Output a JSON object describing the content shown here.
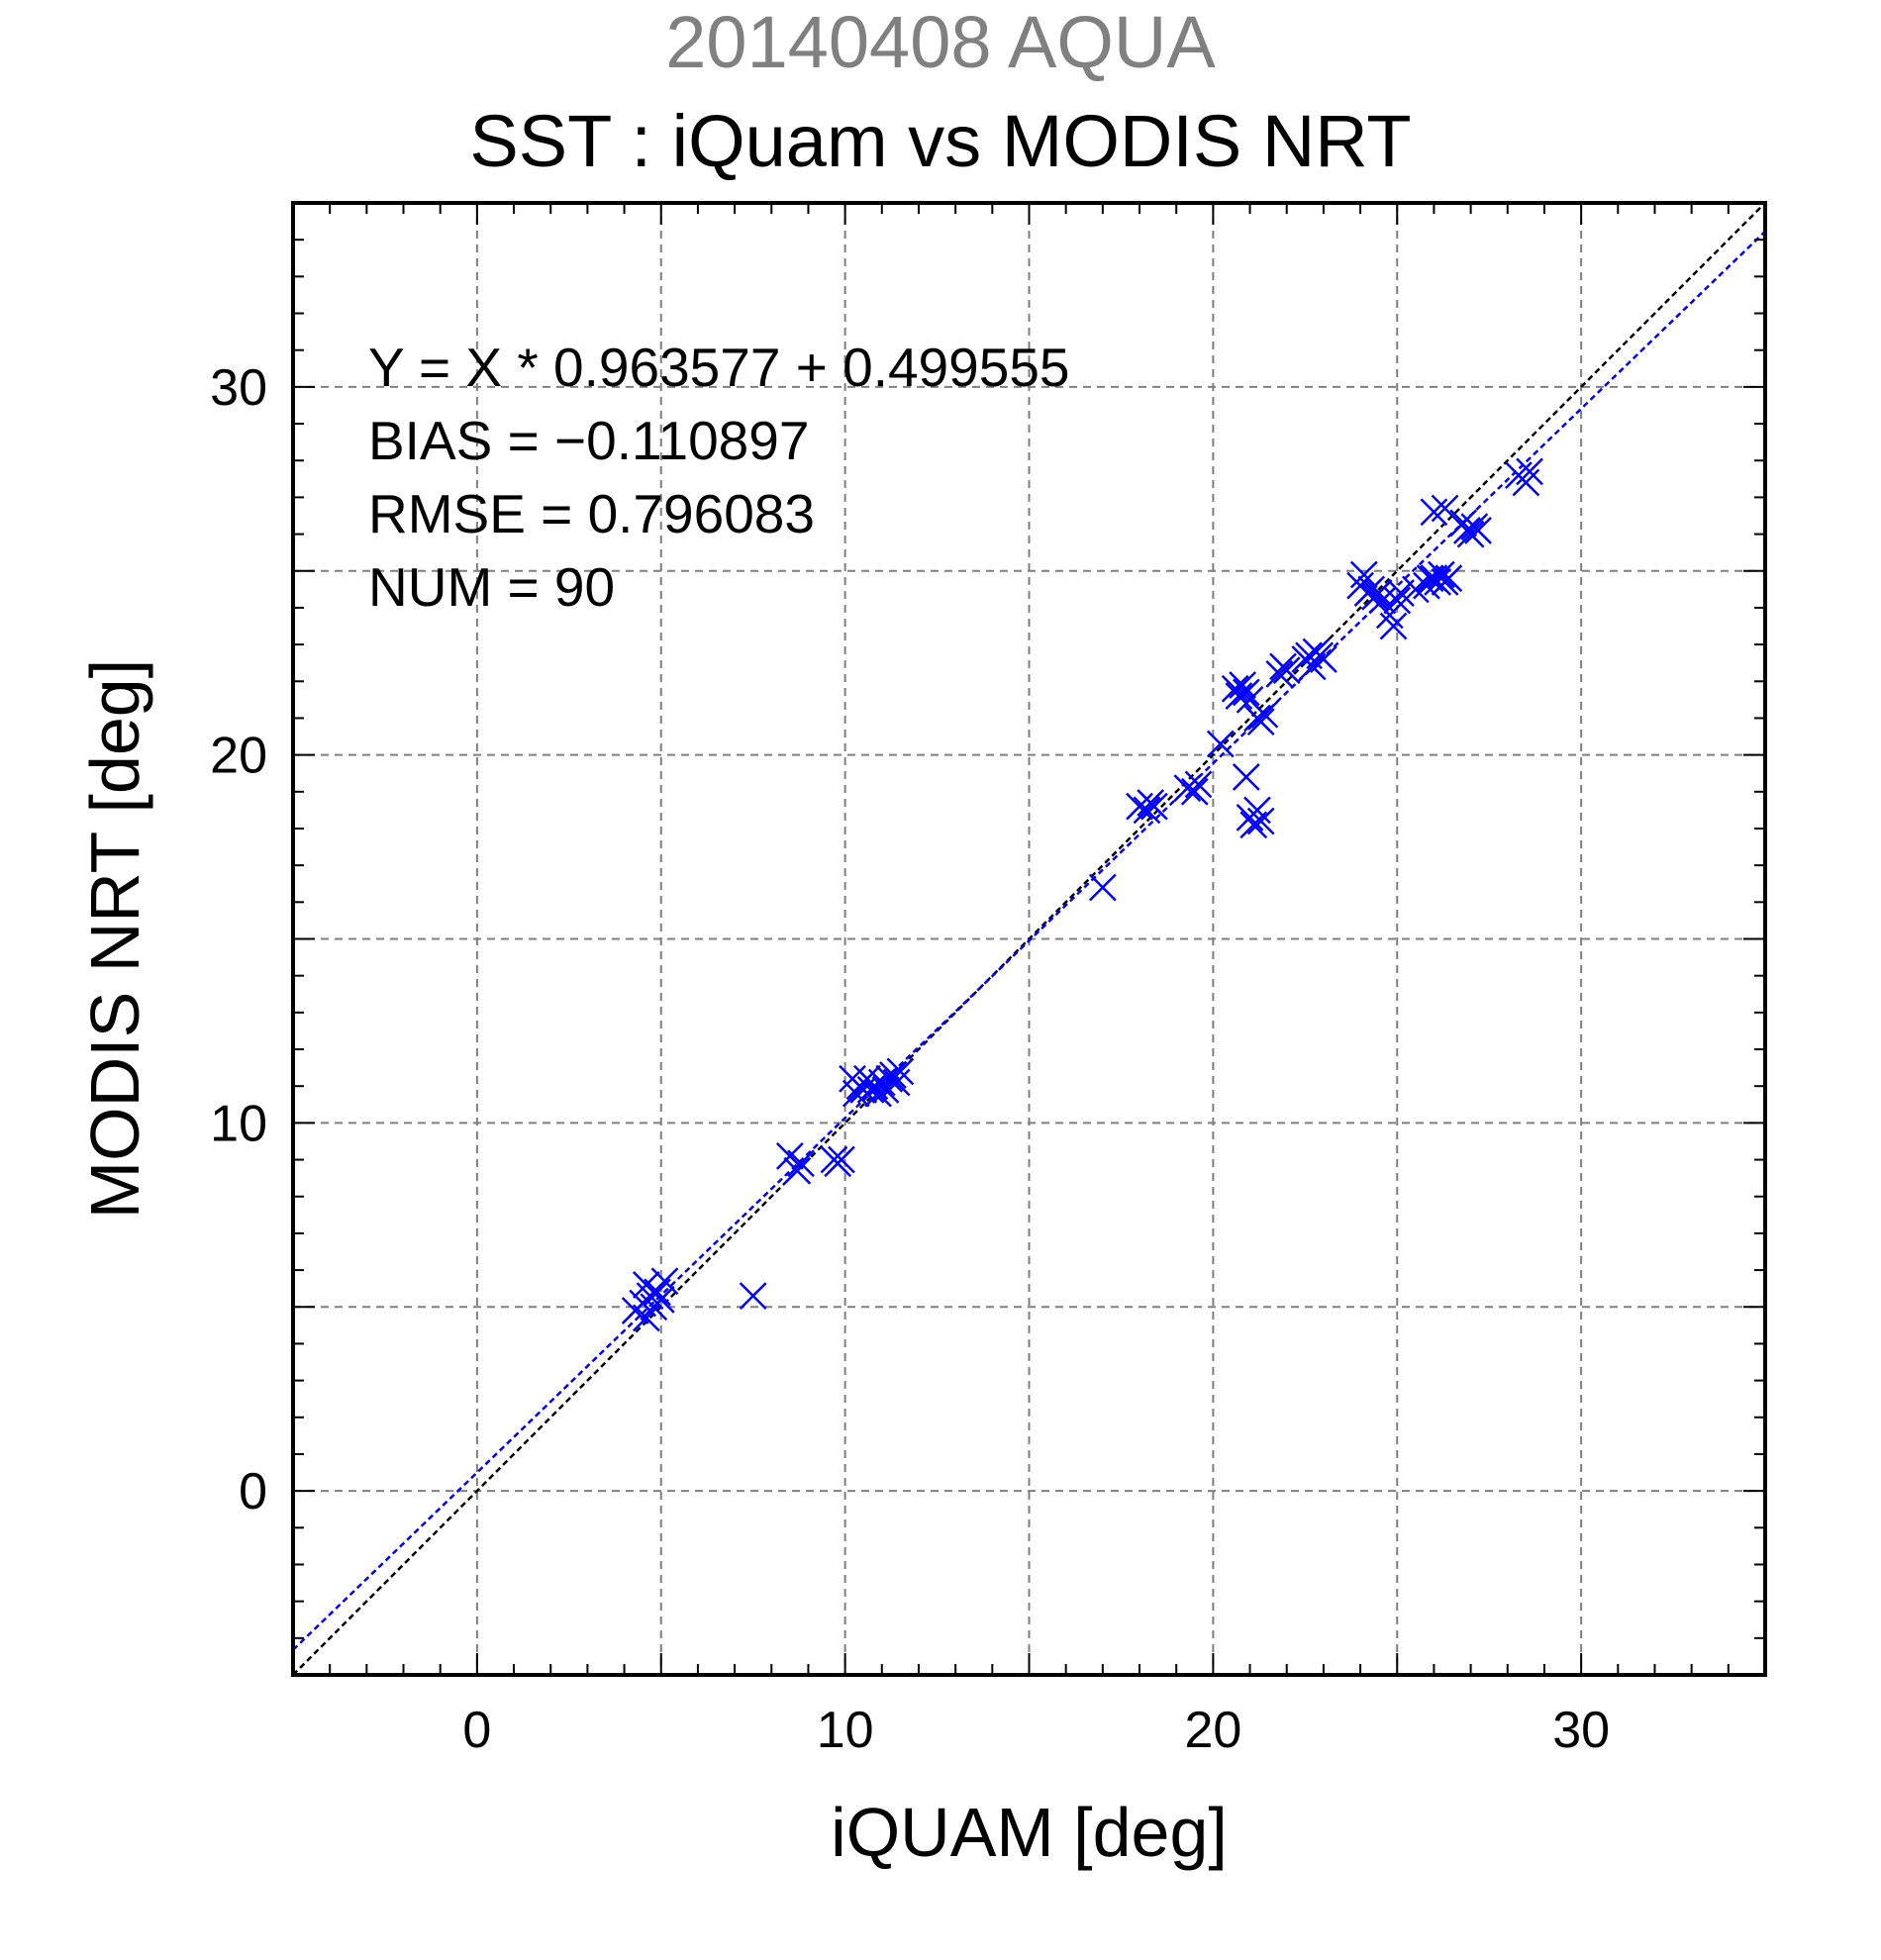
{
  "chart_data": {
    "type": "scatter",
    "supertitle": "20140408 AQUA",
    "title": "SST : iQuam vs MODIS NRT",
    "xlabel": "iQUAM [deg]",
    "ylabel": "MODIS NRT [deg]",
    "xlim": [
      -5,
      35
    ],
    "ylim": [
      -5,
      35
    ],
    "xticks": [
      0,
      10,
      20,
      30
    ],
    "yticks": [
      0,
      10,
      20,
      30
    ],
    "grid": true,
    "annotations": [
      "Y = X * 0.963577 + 0.499555",
      "BIAS = −0.110897",
      "RMSE = 0.796083",
      "NUM = 90"
    ],
    "fit": {
      "slope": 0.963577,
      "intercept": 0.499555,
      "color": "#0000ff"
    },
    "one_to_one_color": "#000000",
    "marker_color": "#0000ff",
    "marker": "x",
    "points": [
      [
        4.3,
        4.9
      ],
      [
        4.5,
        5.1
      ],
      [
        4.6,
        4.7
      ],
      [
        4.6,
        5.6
      ],
      [
        4.7,
        5.3
      ],
      [
        4.8,
        5.0
      ],
      [
        4.9,
        5.4
      ],
      [
        5.0,
        5.2
      ],
      [
        5.1,
        5.7
      ],
      [
        7.5,
        5.3
      ],
      [
        8.5,
        9.1
      ],
      [
        8.7,
        8.7
      ],
      [
        8.8,
        8.9
      ],
      [
        9.7,
        9.0
      ],
      [
        9.8,
        8.9
      ],
      [
        9.9,
        9.0
      ],
      [
        10.2,
        11.2
      ],
      [
        10.3,
        10.8
      ],
      [
        10.4,
        11.0
      ],
      [
        10.5,
        10.9
      ],
      [
        10.6,
        11.2
      ],
      [
        10.7,
        10.9
      ],
      [
        10.8,
        11.0
      ],
      [
        10.9,
        10.8
      ],
      [
        11.0,
        11.1
      ],
      [
        11.1,
        10.9
      ],
      [
        11.2,
        11.2
      ],
      [
        11.3,
        11.3
      ],
      [
        11.4,
        11.1
      ],
      [
        11.5,
        11.4
      ],
      [
        17.0,
        16.4
      ],
      [
        18.0,
        18.6
      ],
      [
        18.2,
        18.5
      ],
      [
        18.3,
        18.7
      ],
      [
        18.4,
        18.6
      ],
      [
        19.3,
        19.1
      ],
      [
        19.5,
        19.0
      ],
      [
        19.6,
        19.2
      ],
      [
        20.2,
        20.3
      ],
      [
        20.6,
        21.8
      ],
      [
        20.7,
        21.6
      ],
      [
        20.8,
        21.9
      ],
      [
        20.9,
        21.7
      ],
      [
        21.0,
        21.5
      ],
      [
        20.9,
        19.4
      ],
      [
        21.0,
        18.3
      ],
      [
        21.1,
        18.1
      ],
      [
        21.2,
        18.5
      ],
      [
        21.3,
        18.2
      ],
      [
        21.2,
        21.0
      ],
      [
        21.3,
        20.9
      ],
      [
        21.4,
        21.1
      ],
      [
        21.8,
        22.2
      ],
      [
        21.9,
        22.4
      ],
      [
        22.0,
        22.3
      ],
      [
        22.5,
        22.6
      ],
      [
        22.6,
        22.7
      ],
      [
        22.7,
        22.4
      ],
      [
        22.8,
        22.8
      ],
      [
        22.9,
        22.7
      ],
      [
        23.0,
        22.6
      ],
      [
        24.0,
        24.6
      ],
      [
        24.1,
        24.9
      ],
      [
        24.2,
        24.4
      ],
      [
        24.3,
        24.5
      ],
      [
        24.4,
        24.3
      ],
      [
        24.5,
        24.4
      ],
      [
        24.6,
        24.2
      ],
      [
        24.8,
        23.8
      ],
      [
        24.9,
        23.5
      ],
      [
        25.0,
        24.2
      ],
      [
        25.1,
        24.4
      ],
      [
        25.5,
        24.5
      ],
      [
        25.8,
        24.6
      ],
      [
        25.9,
        24.8
      ],
      [
        26.0,
        24.8
      ],
      [
        26.1,
        24.7
      ],
      [
        26.2,
        24.9
      ],
      [
        26.3,
        24.7
      ],
      [
        26.4,
        24.8
      ],
      [
        26.0,
        26.6
      ],
      [
        26.3,
        26.7
      ],
      [
        26.8,
        26.3
      ],
      [
        26.9,
        26.1
      ],
      [
        27.0,
        26.0
      ],
      [
        27.1,
        26.2
      ],
      [
        27.2,
        26.1
      ],
      [
        28.3,
        27.6
      ],
      [
        28.5,
        27.4
      ],
      [
        28.6,
        27.7
      ]
    ]
  }
}
